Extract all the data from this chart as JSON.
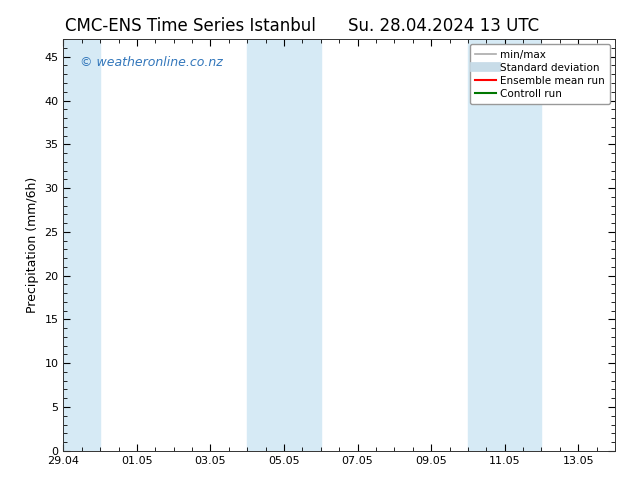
{
  "title_left": "CMC-ENS Time Series Istanbul",
  "title_right": "Su. 28.04.2024 13 UTC",
  "ylabel": "Precipitation (mm/6h)",
  "xlabel": "",
  "xlim": [
    0,
    15
  ],
  "ylim": [
    0,
    47
  ],
  "yticks": [
    0,
    5,
    10,
    15,
    20,
    25,
    30,
    35,
    40,
    45
  ],
  "xtick_labels": [
    "29.04",
    "01.05",
    "03.05",
    "05.05",
    "07.05",
    "09.05",
    "11.05",
    "13.05"
  ],
  "xtick_positions": [
    0,
    2,
    4,
    6,
    8,
    10,
    12,
    14
  ],
  "shaded_bands": [
    {
      "x_start": -0.3,
      "x_end": 1.0,
      "color": "#d6eaf5"
    },
    {
      "x_start": 5.0,
      "x_end": 6.0,
      "color": "#d6eaf5"
    },
    {
      "x_start": 6.0,
      "x_end": 7.0,
      "color": "#d6eaf5"
    },
    {
      "x_start": 11.0,
      "x_end": 12.0,
      "color": "#d6eaf5"
    },
    {
      "x_start": 12.0,
      "x_end": 13.0,
      "color": "#d6eaf5"
    }
  ],
  "background_color": "#ffffff",
  "plot_bg_color": "#ffffff",
  "watermark_text": "© weatheronline.co.nz",
  "watermark_color": "#3377bb",
  "legend_items": [
    {
      "label": "min/max",
      "color": "#aaaaaa",
      "lw": 1.2,
      "style": "solid"
    },
    {
      "label": "Standard deviation",
      "color": "#c8dce8",
      "lw": 7,
      "style": "solid"
    },
    {
      "label": "Ensemble mean run",
      "color": "#ff0000",
      "lw": 1.5,
      "style": "solid"
    },
    {
      "label": "Controll run",
      "color": "#007700",
      "lw": 1.5,
      "style": "solid"
    }
  ],
  "title_fontsize": 12,
  "axis_fontsize": 9,
  "tick_fontsize": 8,
  "watermark_fontsize": 9
}
